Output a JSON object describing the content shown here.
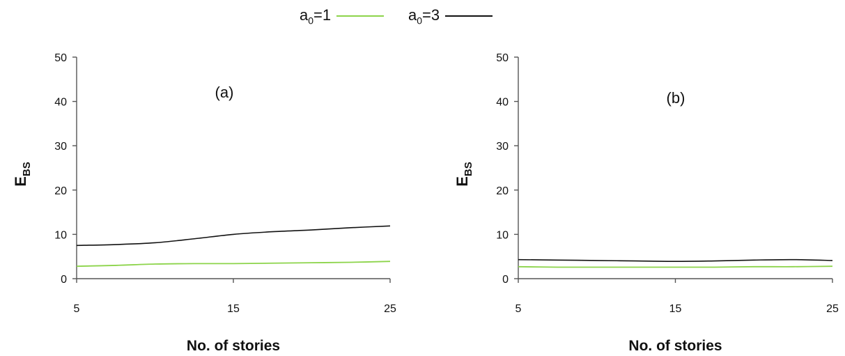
{
  "legend": [
    {
      "label_main": "a",
      "label_sub": "0",
      "label_tail": "=1",
      "color": "#8cd44a"
    },
    {
      "label_main": "a",
      "label_sub": "0",
      "label_tail": "=3",
      "color": "#111111"
    }
  ],
  "chart_data": [
    {
      "type": "line",
      "panel_label": "(a)",
      "xlabel": "No. of stories",
      "ylabel_main": "E",
      "ylabel_sub": "BS",
      "xlim": [
        5,
        25
      ],
      "ylim": [
        0,
        50
      ],
      "xticks": [
        "5",
        "15",
        "25"
      ],
      "yticks": [
        "0",
        "10",
        "20",
        "30",
        "40",
        "50"
      ],
      "series": [
        {
          "name": "a0=1",
          "color": "#8cd44a",
          "x": [
            5,
            7.5,
            10,
            12.5,
            15,
            17.5,
            20,
            22.5,
            25
          ],
          "y": [
            2.8,
            3.0,
            3.3,
            3.4,
            3.4,
            3.5,
            3.6,
            3.7,
            3.9
          ]
        },
        {
          "name": "a0=3",
          "color": "#111111",
          "x": [
            5,
            7.5,
            10,
            12.5,
            15,
            17.5,
            20,
            22.5,
            25
          ],
          "y": [
            7.5,
            7.7,
            8.1,
            9.0,
            10.0,
            10.6,
            11.0,
            11.5,
            11.9
          ]
        }
      ]
    },
    {
      "type": "line",
      "panel_label": "(b)",
      "xlabel": "No. of stories",
      "ylabel_main": "E",
      "ylabel_sub": "BS",
      "xlim": [
        5,
        25
      ],
      "ylim": [
        0,
        50
      ],
      "xticks": [
        "5",
        "15",
        "25"
      ],
      "yticks": [
        "0",
        "10",
        "20",
        "30",
        "40",
        "50"
      ],
      "series": [
        {
          "name": "a0=1",
          "color": "#8cd44a",
          "x": [
            5,
            7.5,
            10,
            12.5,
            15,
            17.5,
            20,
            22.5,
            25
          ],
          "y": [
            2.7,
            2.6,
            2.6,
            2.6,
            2.6,
            2.6,
            2.7,
            2.7,
            2.8
          ]
        },
        {
          "name": "a0=3",
          "color": "#111111",
          "x": [
            5,
            7.5,
            10,
            12.5,
            15,
            17.5,
            20,
            22.5,
            25
          ],
          "y": [
            4.3,
            4.2,
            4.1,
            4.0,
            3.9,
            4.0,
            4.2,
            4.3,
            4.1
          ]
        }
      ]
    }
  ]
}
